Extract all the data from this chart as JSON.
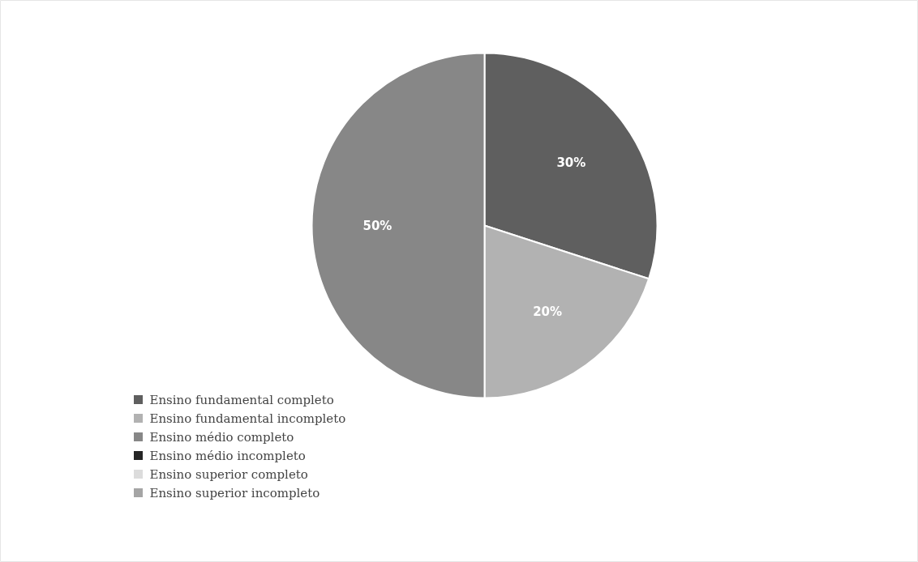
{
  "chart_data": {
    "type": "pie",
    "categories": [
      "Ensino fundamental completo",
      "Ensino fundamental incompleto",
      "Ensino médio completo",
      "Ensino médio incompleto",
      "Ensino superior completo",
      "Ensino superior incompleto"
    ],
    "values": [
      30,
      20,
      50,
      0,
      0,
      0
    ],
    "value_labels": [
      "30%",
      "20%",
      "50%",
      null,
      null,
      null
    ],
    "colors": [
      "#5f5f5f",
      "#b2b2b2",
      "#878787",
      "#262626",
      "#dcdcdc",
      "#a5a5a5"
    ],
    "legend": "bottom left"
  }
}
